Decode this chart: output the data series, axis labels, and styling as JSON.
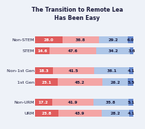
{
  "title": "The Transition to Remote Lea\nHas Been Easy",
  "categories": [
    "Non-STEM",
    "STEM",
    "Non-1st Gen",
    "1st Gen",
    "Non-URM",
    "URM"
  ],
  "values": [
    [
      28.0,
      36.8,
      29.2,
      6.0
    ],
    [
      14.6,
      47.6,
      34.2,
      3.6
    ],
    [
      18.3,
      41.5,
      36.1,
      4.1
    ],
    [
      23.1,
      45.2,
      26.2,
      5.5
    ],
    [
      17.2,
      41.9,
      35.8,
      5.1
    ],
    [
      23.8,
      43.9,
      28.2,
      4.1
    ]
  ],
  "colors": [
    "#e05c5c",
    "#f4a5a5",
    "#aec6e8",
    "#6688cc"
  ],
  "background_color": "#eef2f8",
  "text_color": "#1a1a3a",
  "bar_height": 0.32,
  "title_fontsize": 5.8,
  "label_fontsize": 4.6,
  "value_fontsize": 4.2
}
